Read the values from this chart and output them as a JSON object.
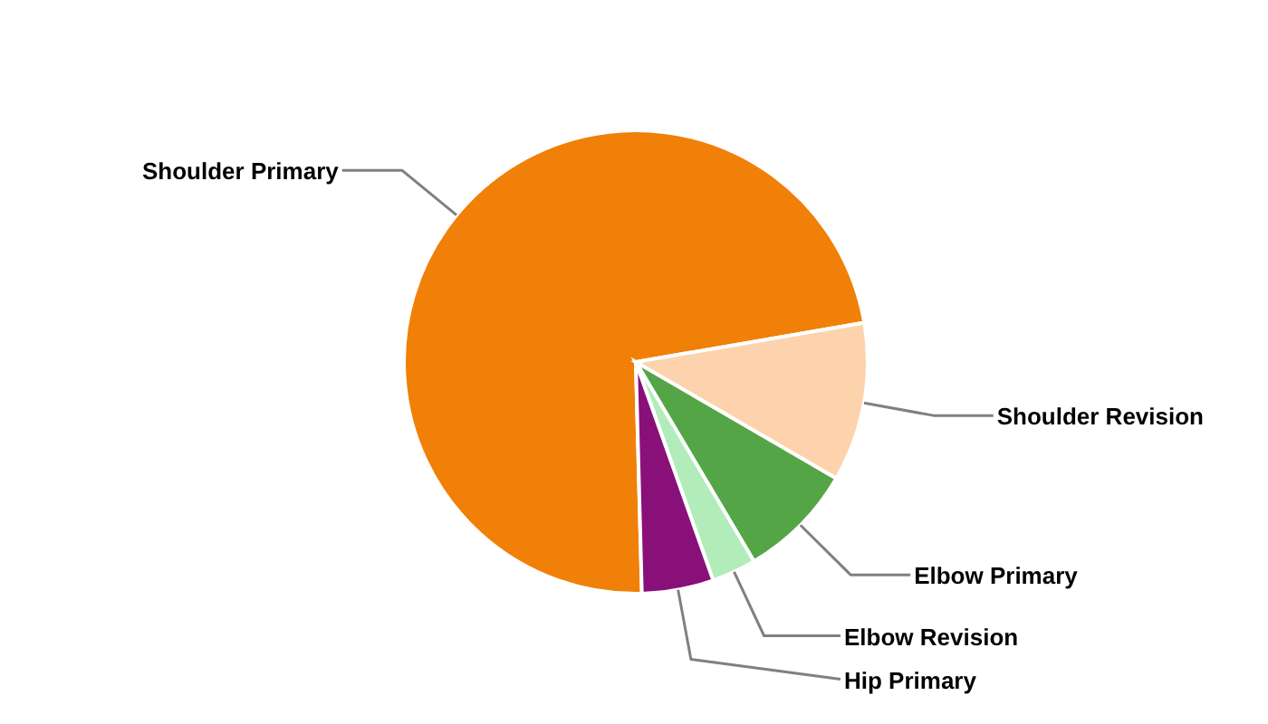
{
  "chart_data": {
    "type": "pie",
    "categories": [
      "Shoulder Primary",
      "Shoulder Revision",
      "Elbow Primary",
      "Elbow Revision",
      "Hip Primary"
    ],
    "values": [
      72.7,
      11.1,
      8.1,
      3.1,
      5
    ],
    "colors": [
      "#f08008",
      "#fdd3ae",
      "#54a546",
      "#b2ecbb",
      "#891079"
    ]
  }
}
